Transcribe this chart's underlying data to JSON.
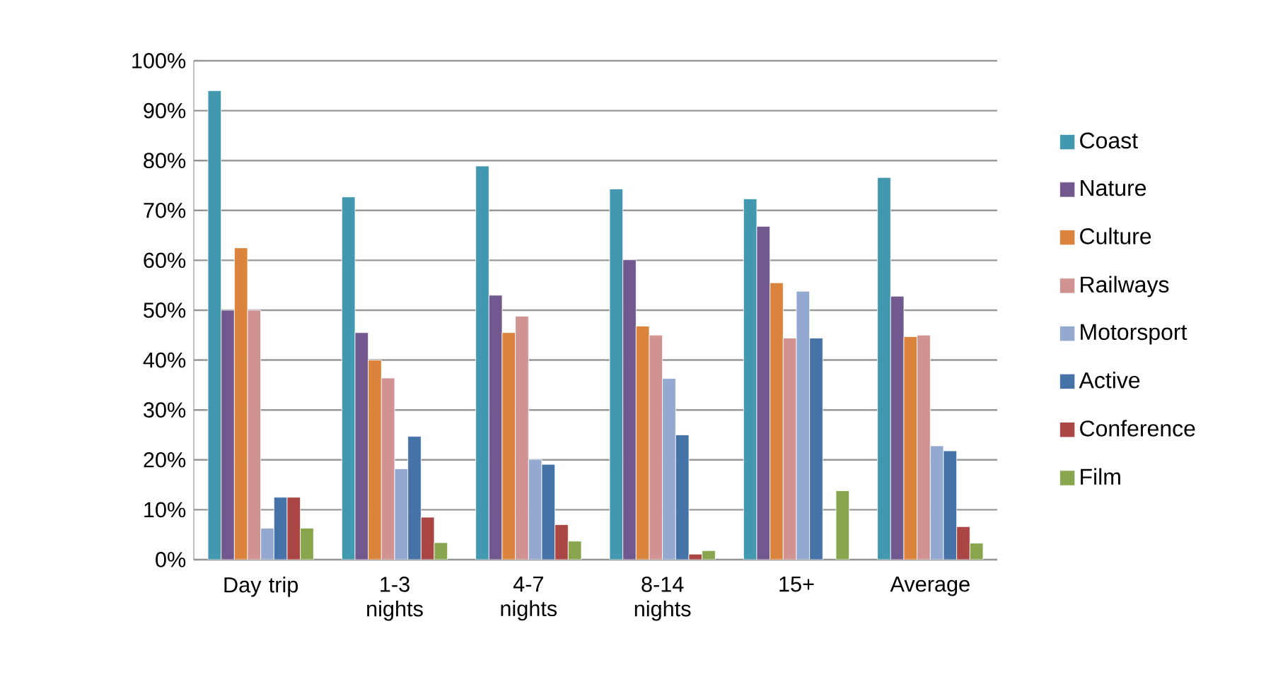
{
  "chart_data": {
    "type": "bar",
    "categories": [
      "Day trip",
      "1-3 nights",
      "4-7 nights",
      "8-14 nights",
      "15+",
      "Average"
    ],
    "ylim": [
      0,
      100
    ],
    "yticks": [
      {
        "value": 0,
        "label": "0%"
      },
      {
        "value": 10,
        "label": "10%"
      },
      {
        "value": 20,
        "label": "20%"
      },
      {
        "value": 30,
        "label": "30%"
      },
      {
        "value": 40,
        "label": "40%"
      },
      {
        "value": 50,
        "label": "50%"
      },
      {
        "value": 60,
        "label": "60%"
      },
      {
        "value": 70,
        "label": "70%"
      },
      {
        "value": 80,
        "label": "80%"
      },
      {
        "value": 90,
        "label": "90%"
      },
      {
        "value": 100,
        "label": "100%"
      }
    ],
    "grid": "y",
    "legend": "right",
    "series": [
      {
        "name": "Coast",
        "color": "#4198af",
        "values": [
          94,
          72.7,
          78.9,
          74.3,
          72.3,
          76.6
        ]
      },
      {
        "name": "Nature",
        "color": "#71588f",
        "values": [
          50,
          45.5,
          53,
          60.1,
          66.8,
          52.8
        ]
      },
      {
        "name": "Culture",
        "color": "#db843d",
        "values": [
          62.5,
          40,
          45.5,
          46.8,
          55.5,
          44.7
        ]
      },
      {
        "name": "Railways",
        "color": "#d09392",
        "values": [
          50,
          36.4,
          48.8,
          45,
          44.4,
          45
        ]
      },
      {
        "name": "Motorsport",
        "color": "#93a9cf",
        "values": [
          6.3,
          18.2,
          20.1,
          36.3,
          53.8,
          22.8
        ]
      },
      {
        "name": "Active",
        "color": "#4572a7",
        "values": [
          12.5,
          24.7,
          19.1,
          25,
          44.4,
          21.8
        ]
      },
      {
        "name": "Conference",
        "color": "#aa4643",
        "values": [
          12.5,
          8.5,
          7,
          1.1,
          null,
          6.6
        ]
      },
      {
        "name": "Film",
        "color": "#89a54e",
        "values": [
          6.3,
          3.4,
          3.7,
          1.8,
          13.8,
          3.3
        ]
      }
    ]
  }
}
